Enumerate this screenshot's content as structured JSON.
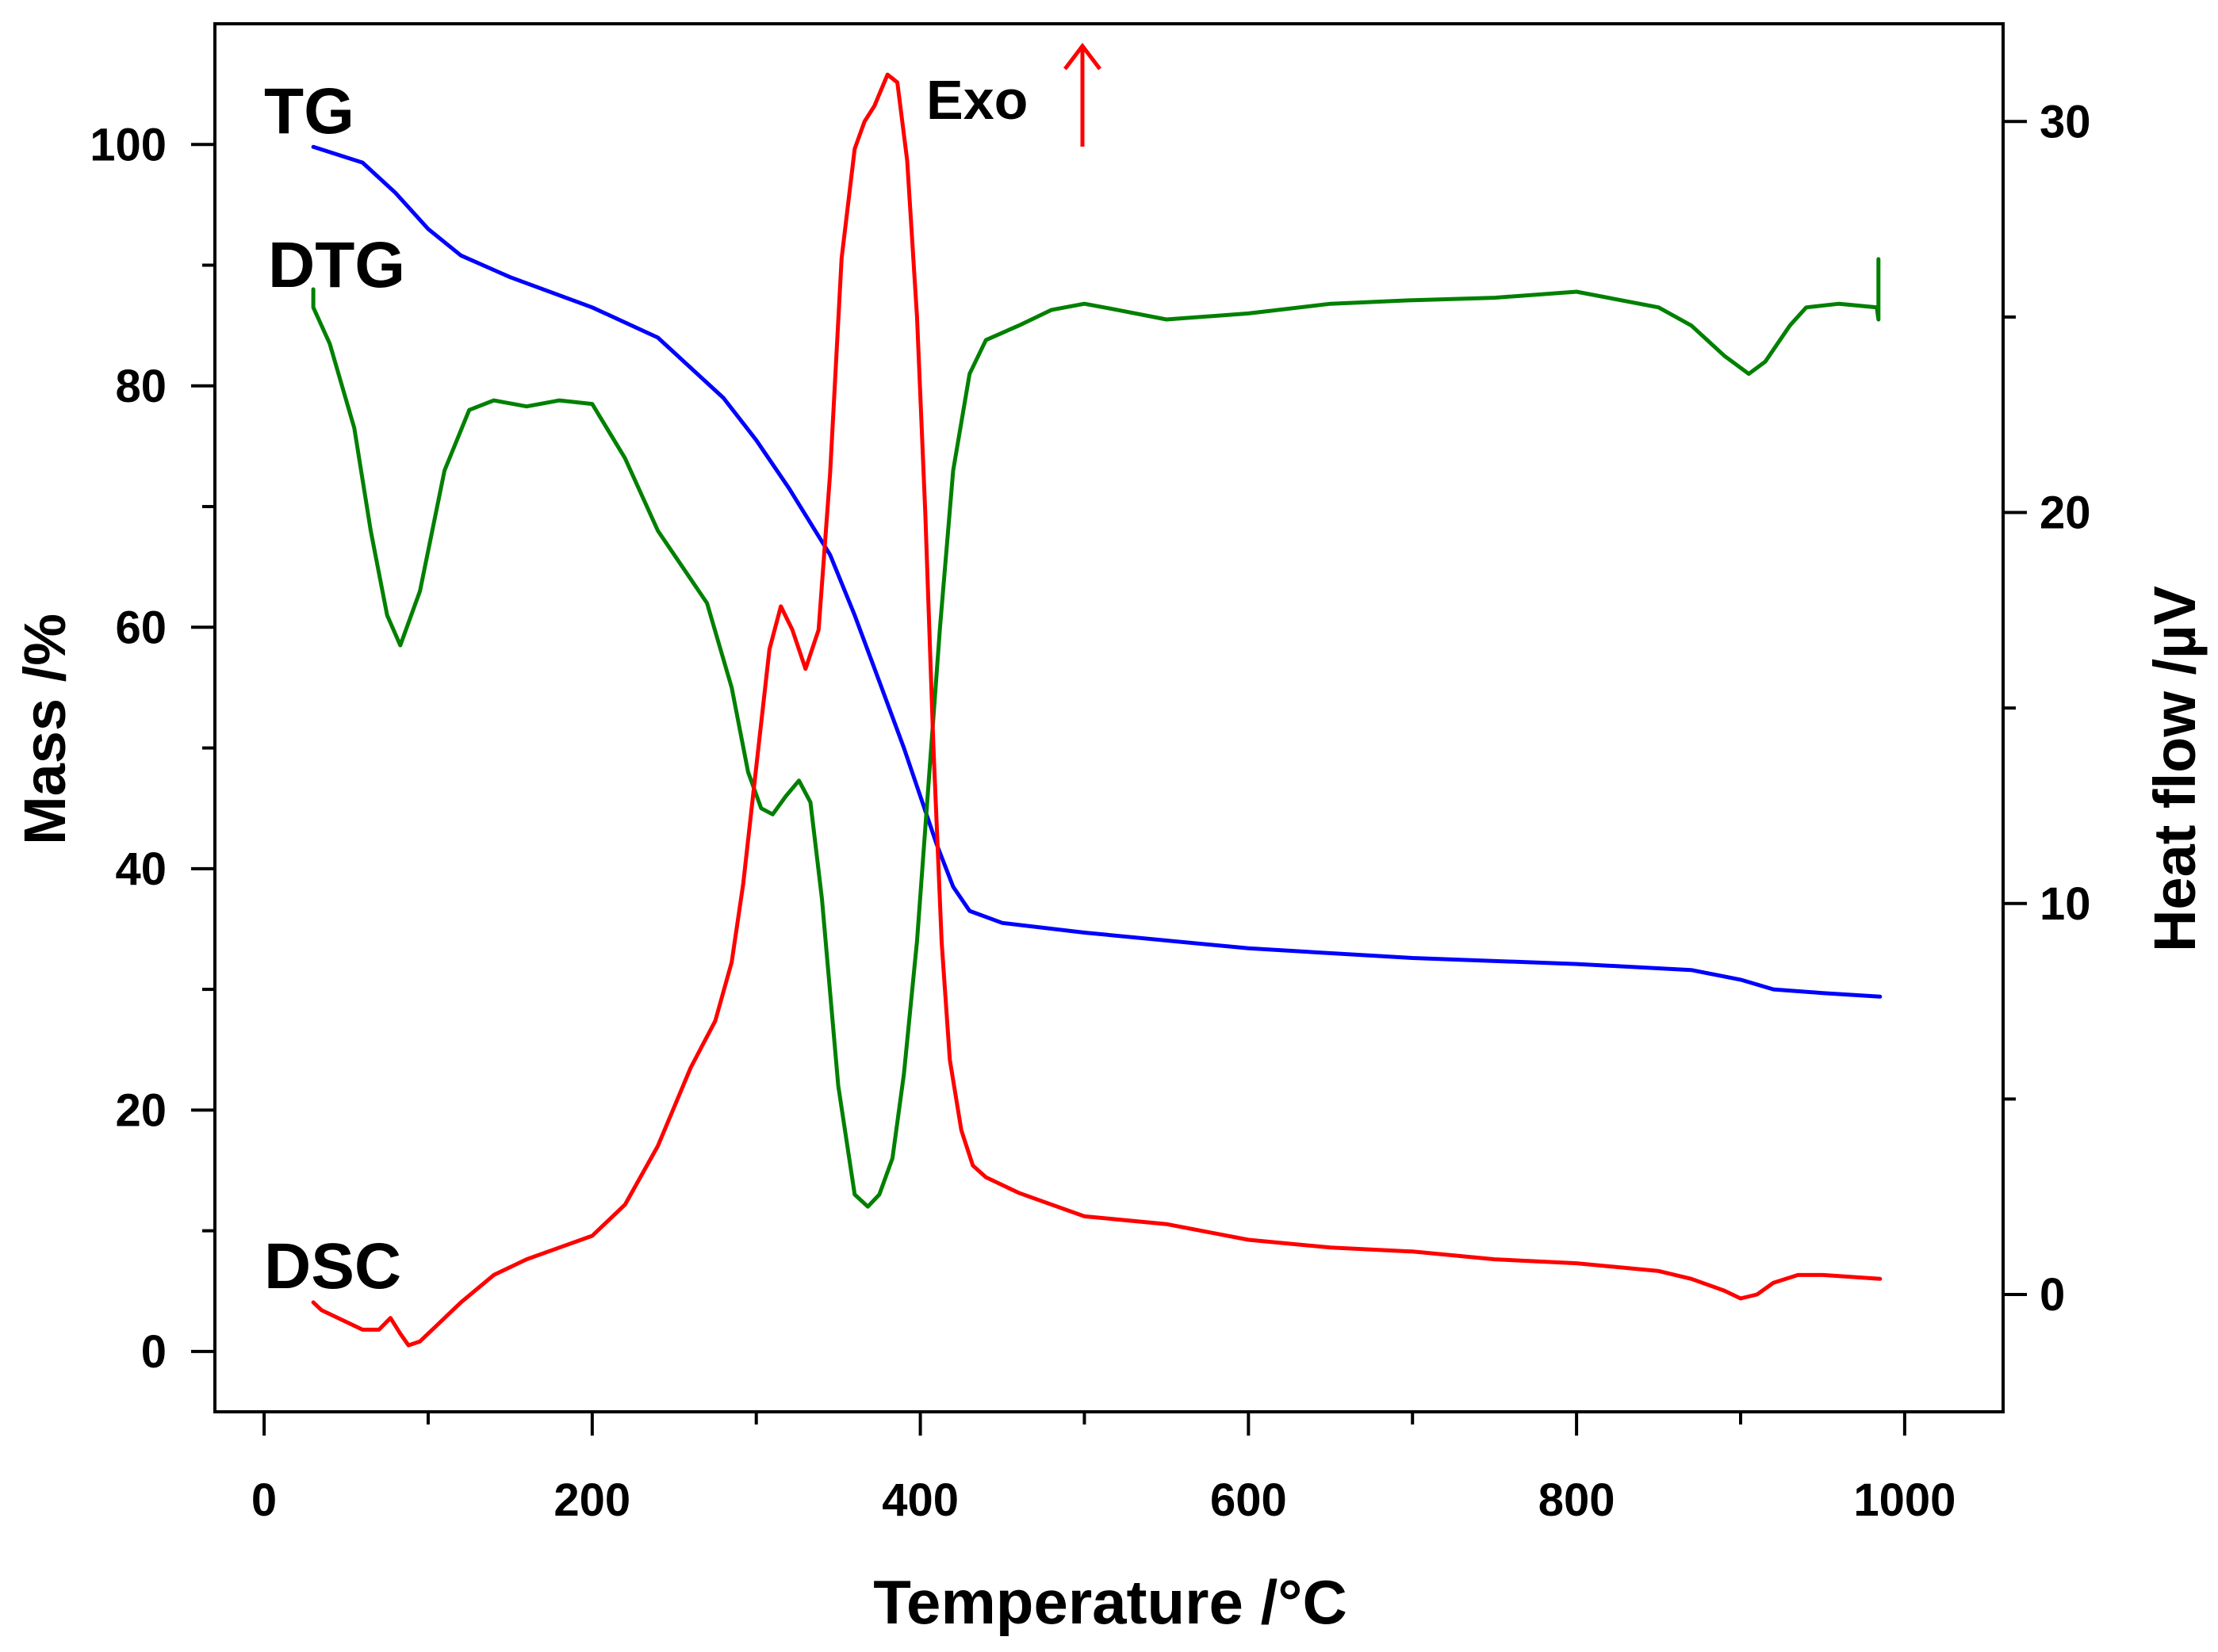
{
  "chart_data": {
    "type": "line",
    "xlabel": "Temperature /°C",
    "ylabel_left": "Mass /%",
    "ylabel_right": "Heat flow /µV",
    "xlim": [
      -30,
      1060
    ],
    "ylim_left": [
      -5,
      110
    ],
    "ylim_right": [
      -3,
      32.5
    ],
    "x_ticks": [
      0,
      200,
      400,
      600,
      800,
      1000
    ],
    "x_tick_labels": [
      "0",
      "200",
      "400",
      "600",
      "800",
      "1000"
    ],
    "y_left_ticks": [
      0,
      20,
      40,
      60,
      80,
      100
    ],
    "y_left_tick_labels": [
      "0",
      "20",
      "40",
      "60",
      "80",
      "100"
    ],
    "y_right_ticks": [
      0,
      10,
      20,
      30
    ],
    "y_right_tick_labels": [
      "0",
      "10",
      "20",
      "30"
    ],
    "annotations": {
      "tg": "TG",
      "dtg": "DTG",
      "dsc": "DSC",
      "exo": "Exo"
    },
    "series": [
      {
        "name": "TG",
        "axis": "left",
        "color": "#0000ff",
        "x": [
          30,
          60,
          80,
          100,
          120,
          150,
          200,
          240,
          280,
          300,
          320,
          345,
          360,
          375,
          390,
          400,
          410,
          420,
          430,
          450,
          500,
          600,
          700,
          800,
          870,
          900,
          920,
          950,
          985
        ],
        "y": [
          99.8,
          98.5,
          96.0,
          93.0,
          90.8,
          89.0,
          86.5,
          84.0,
          79.0,
          75.5,
          71.5,
          66.0,
          61.0,
          55.5,
          50.0,
          46.0,
          42.0,
          38.5,
          36.5,
          35.5,
          34.7,
          33.4,
          32.6,
          32.1,
          31.6,
          30.8,
          30.0,
          29.7,
          29.4
        ]
      },
      {
        "name": "DTG",
        "axis": "left",
        "color": "#008000",
        "x": [
          30,
          30,
          40,
          55,
          65,
          75,
          83,
          95,
          110,
          125,
          140,
          160,
          180,
          200,
          220,
          240,
          255,
          270,
          285,
          295,
          303,
          310,
          318,
          326,
          333,
          340,
          350,
          360,
          368,
          375,
          383,
          390,
          398,
          405,
          412,
          420,
          430,
          440,
          460,
          480,
          500,
          520,
          550,
          600,
          650,
          700,
          750,
          800,
          850,
          870,
          890,
          905,
          915,
          930,
          940,
          960,
          983,
          984,
          984
        ],
        "y": [
          88.0,
          86.5,
          83.5,
          76.5,
          68.0,
          61.0,
          58.5,
          63.0,
          73.0,
          78.0,
          78.8,
          78.3,
          78.8,
          78.5,
          74.0,
          68.0,
          65.0,
          62.0,
          55.0,
          48.0,
          45.0,
          44.5,
          46.0,
          47.3,
          45.5,
          37.5,
          22.0,
          13.0,
          12.0,
          13.0,
          16.0,
          23.0,
          34.0,
          47.0,
          60.0,
          73.0,
          81.0,
          83.8,
          85.0,
          86.3,
          86.8,
          86.3,
          85.5,
          86.0,
          86.8,
          87.1,
          87.3,
          87.8,
          86.5,
          85.0,
          82.5,
          81.0,
          82.0,
          85.0,
          86.5,
          86.8,
          86.5,
          85.5,
          90.5
        ]
      },
      {
        "name": "DSC",
        "axis": "right",
        "color": "#ff0000",
        "x": [
          30,
          35,
          45,
          60,
          70,
          77,
          83,
          88,
          95,
          105,
          120,
          140,
          160,
          180,
          200,
          220,
          240,
          260,
          275,
          285,
          292,
          300,
          308,
          315,
          322,
          330,
          338,
          345,
          352,
          360,
          366,
          372,
          380,
          386,
          392,
          398,
          403,
          408,
          413,
          418,
          425,
          432,
          440,
          460,
          500,
          550,
          600,
          650,
          700,
          750,
          800,
          850,
          870,
          890,
          900,
          910,
          920,
          935,
          950,
          985
        ],
        "y": [
          -0.2,
          -0.4,
          -0.6,
          -0.9,
          -0.9,
          -0.6,
          -1.0,
          -1.3,
          -1.2,
          -0.8,
          -0.2,
          0.5,
          0.9,
          1.2,
          1.5,
          2.3,
          3.8,
          5.8,
          7.0,
          8.5,
          10.5,
          13.5,
          16.5,
          17.6,
          17.0,
          16.0,
          17.0,
          21.0,
          26.5,
          29.3,
          30.0,
          30.4,
          31.2,
          31.0,
          29.0,
          25.0,
          20.0,
          14.0,
          9.0,
          6.0,
          4.2,
          3.3,
          3.0,
          2.6,
          2.0,
          1.8,
          1.4,
          1.2,
          1.1,
          0.9,
          0.8,
          0.6,
          0.4,
          0.1,
          -0.1,
          0.0,
          0.3,
          0.5,
          0.5,
          0.4
        ]
      }
    ]
  }
}
